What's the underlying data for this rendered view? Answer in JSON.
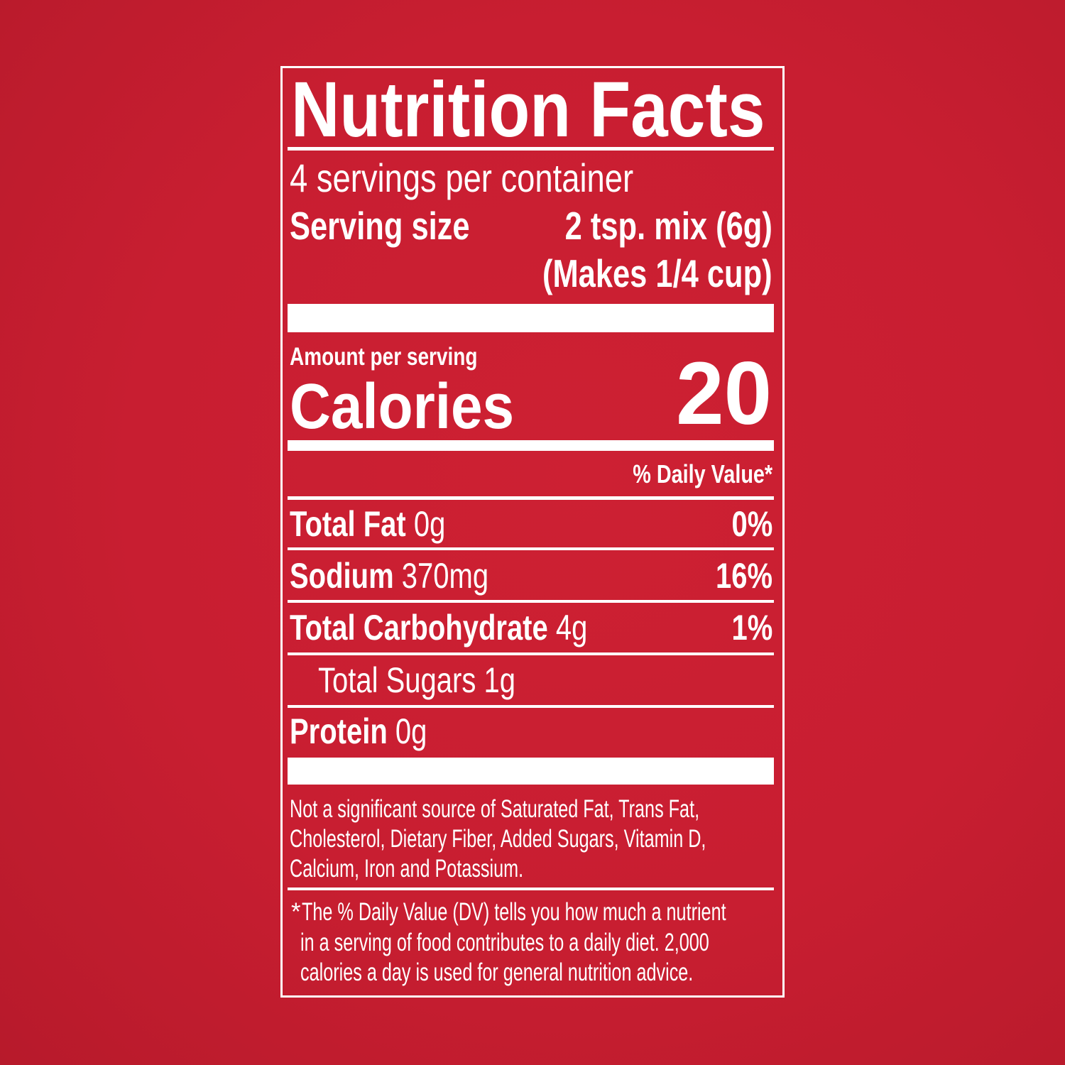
{
  "label": {
    "title": "Nutrition Facts",
    "servings_per_container": "4 servings per container",
    "serving_size_label": "Serving size",
    "serving_size_value": "2 tsp. mix (6g)",
    "serving_size_note": "(Makes 1/4 cup)",
    "amount_per_serving": "Amount per serving",
    "calories_label": "Calories",
    "calories_value": "20",
    "daily_value_header": "% Daily Value*",
    "nutrients": [
      {
        "name": "Total Fat",
        "amount": "0g",
        "dv": "0%"
      },
      {
        "name": "Sodium",
        "amount": "370mg",
        "dv": "16%"
      },
      {
        "name": "Total Carbohydrate",
        "amount": "4g",
        "dv": "1%"
      },
      {
        "name": "Total Sugars 1g",
        "amount": "",
        "dv": ""
      },
      {
        "name": "Protein",
        "amount": "0g",
        "dv": ""
      }
    ],
    "not_significant": [
      "Not a significant source of Saturated Fat, Trans Fat,",
      "Cholesterol, Dietary Fiber, Added Sugars, Vitamin D,",
      "Calcium, Iron and Potassium."
    ],
    "footnote_star": "*",
    "footnote": [
      "The % Daily Value (DV) tells you how much a nutrient",
      "in a serving of food contributes to a daily diet. 2,000",
      "calories a day is used for general nutrition advice."
    ]
  },
  "colors": {
    "background": "#c81e31",
    "text": "#ffffff"
  }
}
